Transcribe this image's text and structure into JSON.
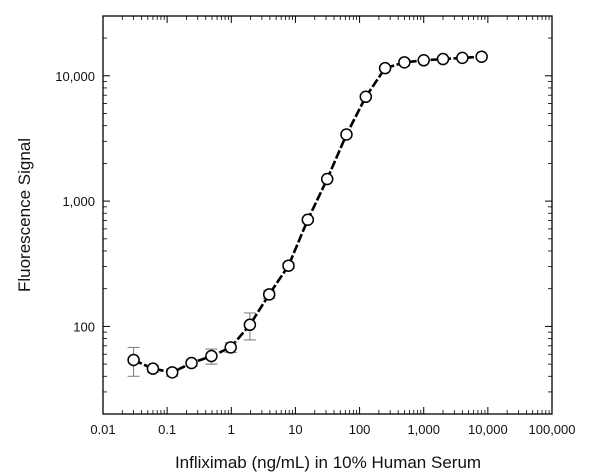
{
  "chart_data": {
    "type": "scatter",
    "title": "",
    "xlabel": "Infliximab (ng/mL) in 10% Human Serum",
    "ylabel": "Fluorescence Signal",
    "xscale": "log",
    "yscale": "log",
    "xlim": [
      0.01,
      100000
    ],
    "ylim": [
      20,
      30000
    ],
    "grid": false,
    "legend": "none",
    "line": "fitted curve",
    "x_ticks": [
      {
        "value": 0.01,
        "label": "0.01"
      },
      {
        "value": 0.1,
        "label": "0.1"
      },
      {
        "value": 1,
        "label": "1"
      },
      {
        "value": 10,
        "label": "10"
      },
      {
        "value": 100,
        "label": "100"
      },
      {
        "value": 1000,
        "label": "1,000"
      },
      {
        "value": 10000,
        "label": "10,000"
      },
      {
        "value": 100000,
        "label": "100,000"
      }
    ],
    "y_ticks": [
      {
        "value": 100,
        "label": "100"
      },
      {
        "value": 1000,
        "label": "1,000"
      },
      {
        "value": 10000,
        "label": "10,000"
      }
    ],
    "series": [
      {
        "x": [
          0.03,
          0.06,
          0.12,
          0.24,
          0.49,
          0.98,
          1.95,
          3.9,
          7.8,
          15.6,
          31.3,
          62.5,
          125,
          250,
          500,
          1000,
          2000,
          4000,
          8000
        ],
        "y": [
          54,
          46,
          43,
          51,
          58,
          68,
          103,
          180,
          305,
          710,
          1500,
          3400,
          6800,
          11500,
          12800,
          13300,
          13600,
          13900,
          14200
        ],
        "y_err": [
          14,
          3,
          3,
          3,
          8,
          6,
          25,
          13,
          15,
          30,
          40,
          80,
          200,
          300,
          300,
          300,
          300,
          300,
          300
        ]
      }
    ],
    "colors": {
      "line": "#000000",
      "marker_fill": "#ffffff",
      "errorbar": "#777777"
    }
  }
}
